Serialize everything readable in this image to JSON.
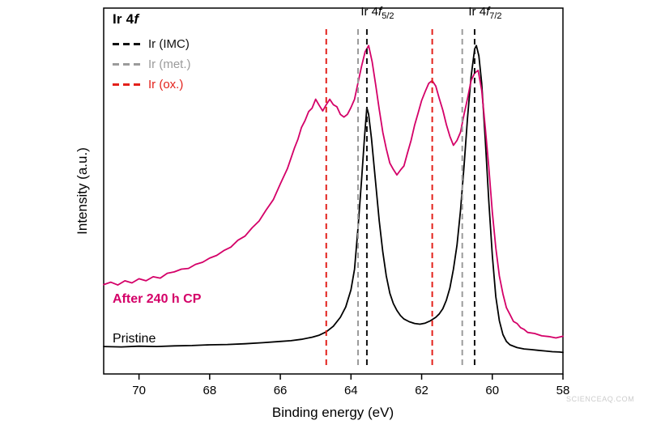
{
  "watermark": "SCIENCEAQ.COM",
  "chart_data": {
    "type": "line",
    "title": "Ir 4f",
    "title_parts": {
      "pre": "Ir 4",
      "italic": "f"
    },
    "xlabel": "Binding energy (eV)",
    "ylabel": "Intensity (a.u.)",
    "x_range": [
      71,
      58
    ],
    "x_axis_reversed": true,
    "x_ticks": [
      70,
      68,
      66,
      64,
      62,
      60,
      58
    ],
    "ylim": [
      0,
      1
    ],
    "grid": false,
    "legend_position": "top-left",
    "reference_lines": [
      {
        "label": "Ir (IMC)",
        "color": "#111111",
        "positions": [
          63.55,
          60.5
        ]
      },
      {
        "label": "Ir (met.)",
        "color": "#9b9b9b",
        "positions": [
          63.8,
          60.85
        ]
      },
      {
        "label": "Ir (ox.)",
        "color": "#e3211b",
        "positions": [
          64.7,
          61.7
        ]
      }
    ],
    "peak_labels": [
      {
        "pre": "Ir 4",
        "italic": "f",
        "sub": "5/2",
        "x": 63.55
      },
      {
        "pre": "Ir 4",
        "italic": "f",
        "sub": "7/2",
        "x": 60.5
      }
    ],
    "series_labels": [
      {
        "text": "After 240 h CP",
        "color": "#d40068"
      },
      {
        "text": "Pristine",
        "color": "#000000"
      }
    ],
    "series": [
      {
        "name": "Pristine",
        "color": "#000000",
        "points": [
          [
            71,
            0.075
          ],
          [
            70.5,
            0.074
          ],
          [
            70,
            0.076
          ],
          [
            69.5,
            0.075
          ],
          [
            69,
            0.077
          ],
          [
            68.5,
            0.078
          ],
          [
            68,
            0.08
          ],
          [
            67.5,
            0.081
          ],
          [
            67,
            0.083
          ],
          [
            66.5,
            0.086
          ],
          [
            66,
            0.09
          ],
          [
            65.7,
            0.092
          ],
          [
            65.4,
            0.096
          ],
          [
            65.1,
            0.102
          ],
          [
            64.9,
            0.108
          ],
          [
            64.7,
            0.118
          ],
          [
            64.5,
            0.134
          ],
          [
            64.3,
            0.16
          ],
          [
            64.15,
            0.19
          ],
          [
            64,
            0.24
          ],
          [
            63.9,
            0.3
          ],
          [
            63.8,
            0.42
          ],
          [
            63.7,
            0.56
          ],
          [
            63.62,
            0.68
          ],
          [
            63.55,
            0.77
          ],
          [
            63.5,
            0.75
          ],
          [
            63.42,
            0.68
          ],
          [
            63.3,
            0.55
          ],
          [
            63.2,
            0.44
          ],
          [
            63.1,
            0.35
          ],
          [
            63,
            0.28
          ],
          [
            62.9,
            0.23
          ],
          [
            62.8,
            0.2
          ],
          [
            62.7,
            0.18
          ],
          [
            62.6,
            0.165
          ],
          [
            62.5,
            0.155
          ],
          [
            62.35,
            0.147
          ],
          [
            62.2,
            0.142
          ],
          [
            62.05,
            0.14
          ],
          [
            61.9,
            0.143
          ],
          [
            61.75,
            0.15
          ],
          [
            61.6,
            0.16
          ],
          [
            61.5,
            0.17
          ],
          [
            61.4,
            0.185
          ],
          [
            61.3,
            0.21
          ],
          [
            61.2,
            0.245
          ],
          [
            61.1,
            0.3
          ],
          [
            61,
            0.37
          ],
          [
            60.9,
            0.47
          ],
          [
            60.8,
            0.6
          ],
          [
            60.7,
            0.74
          ],
          [
            60.6,
            0.86
          ],
          [
            60.5,
            0.94
          ],
          [
            60.45,
            0.95
          ],
          [
            60.38,
            0.92
          ],
          [
            60.3,
            0.84
          ],
          [
            60.2,
            0.68
          ],
          [
            60.1,
            0.5
          ],
          [
            60,
            0.34
          ],
          [
            59.9,
            0.22
          ],
          [
            59.8,
            0.15
          ],
          [
            59.7,
            0.11
          ],
          [
            59.6,
            0.09
          ],
          [
            59.5,
            0.08
          ],
          [
            59.3,
            0.072
          ],
          [
            59.1,
            0.068
          ],
          [
            58.9,
            0.066
          ],
          [
            58.7,
            0.064
          ],
          [
            58.5,
            0.062
          ],
          [
            58.3,
            0.06
          ],
          [
            58.1,
            0.059
          ],
          [
            58,
            0.058
          ]
        ]
      },
      {
        "name": "After 240 h CP",
        "color": "#d40068",
        "points": [
          [
            71,
            0.255
          ],
          [
            70.8,
            0.262
          ],
          [
            70.6,
            0.254
          ],
          [
            70.4,
            0.266
          ],
          [
            70.2,
            0.26
          ],
          [
            70,
            0.272
          ],
          [
            69.8,
            0.266
          ],
          [
            69.6,
            0.278
          ],
          [
            69.4,
            0.274
          ],
          [
            69.2,
            0.288
          ],
          [
            69,
            0.292
          ],
          [
            68.8,
            0.3
          ],
          [
            68.6,
            0.302
          ],
          [
            68.4,
            0.314
          ],
          [
            68.2,
            0.32
          ],
          [
            68,
            0.332
          ],
          [
            67.8,
            0.34
          ],
          [
            67.6,
            0.354
          ],
          [
            67.4,
            0.364
          ],
          [
            67.2,
            0.384
          ],
          [
            67,
            0.396
          ],
          [
            66.8,
            0.42
          ],
          [
            66.6,
            0.44
          ],
          [
            66.4,
            0.472
          ],
          [
            66.2,
            0.502
          ],
          [
            66,
            0.548
          ],
          [
            65.8,
            0.592
          ],
          [
            65.6,
            0.652
          ],
          [
            65.5,
            0.678
          ],
          [
            65.4,
            0.712
          ],
          [
            65.3,
            0.732
          ],
          [
            65.2,
            0.758
          ],
          [
            65.1,
            0.768
          ],
          [
            65,
            0.794
          ],
          [
            64.9,
            0.776
          ],
          [
            64.8,
            0.76
          ],
          [
            64.7,
            0.778
          ],
          [
            64.6,
            0.794
          ],
          [
            64.5,
            0.778
          ],
          [
            64.4,
            0.772
          ],
          [
            64.3,
            0.75
          ],
          [
            64.2,
            0.742
          ],
          [
            64.1,
            0.75
          ],
          [
            64,
            0.77
          ],
          [
            63.9,
            0.794
          ],
          [
            63.8,
            0.842
          ],
          [
            63.7,
            0.89
          ],
          [
            63.6,
            0.932
          ],
          [
            63.5,
            0.95
          ],
          [
            63.4,
            0.902
          ],
          [
            63.3,
            0.836
          ],
          [
            63.2,
            0.764
          ],
          [
            63.1,
            0.698
          ],
          [
            63,
            0.65
          ],
          [
            62.9,
            0.608
          ],
          [
            62.8,
            0.59
          ],
          [
            62.7,
            0.574
          ],
          [
            62.6,
            0.588
          ],
          [
            62.5,
            0.6
          ],
          [
            62.4,
            0.638
          ],
          [
            62.3,
            0.674
          ],
          [
            62.2,
            0.718
          ],
          [
            62.1,
            0.754
          ],
          [
            62,
            0.79
          ],
          [
            61.9,
            0.816
          ],
          [
            61.8,
            0.84
          ],
          [
            61.7,
            0.848
          ],
          [
            61.6,
            0.832
          ],
          [
            61.5,
            0.796
          ],
          [
            61.4,
            0.762
          ],
          [
            61.3,
            0.72
          ],
          [
            61.2,
            0.686
          ],
          [
            61.1,
            0.66
          ],
          [
            61,
            0.674
          ],
          [
            60.9,
            0.698
          ],
          [
            60.8,
            0.75
          ],
          [
            60.7,
            0.796
          ],
          [
            60.6,
            0.848
          ],
          [
            60.5,
            0.87
          ],
          [
            60.4,
            0.878
          ],
          [
            60.3,
            0.82
          ],
          [
            60.2,
            0.714
          ],
          [
            60.1,
            0.598
          ],
          [
            60,
            0.466
          ],
          [
            59.9,
            0.362
          ],
          [
            59.8,
            0.28
          ],
          [
            59.7,
            0.228
          ],
          [
            59.6,
            0.188
          ],
          [
            59.5,
            0.168
          ],
          [
            59.4,
            0.148
          ],
          [
            59.3,
            0.142
          ],
          [
            59.2,
            0.13
          ],
          [
            59.1,
            0.125
          ],
          [
            59,
            0.116
          ],
          [
            58.8,
            0.113
          ],
          [
            58.6,
            0.106
          ],
          [
            58.4,
            0.104
          ],
          [
            58.2,
            0.1
          ],
          [
            58,
            0.105
          ]
        ]
      }
    ]
  }
}
